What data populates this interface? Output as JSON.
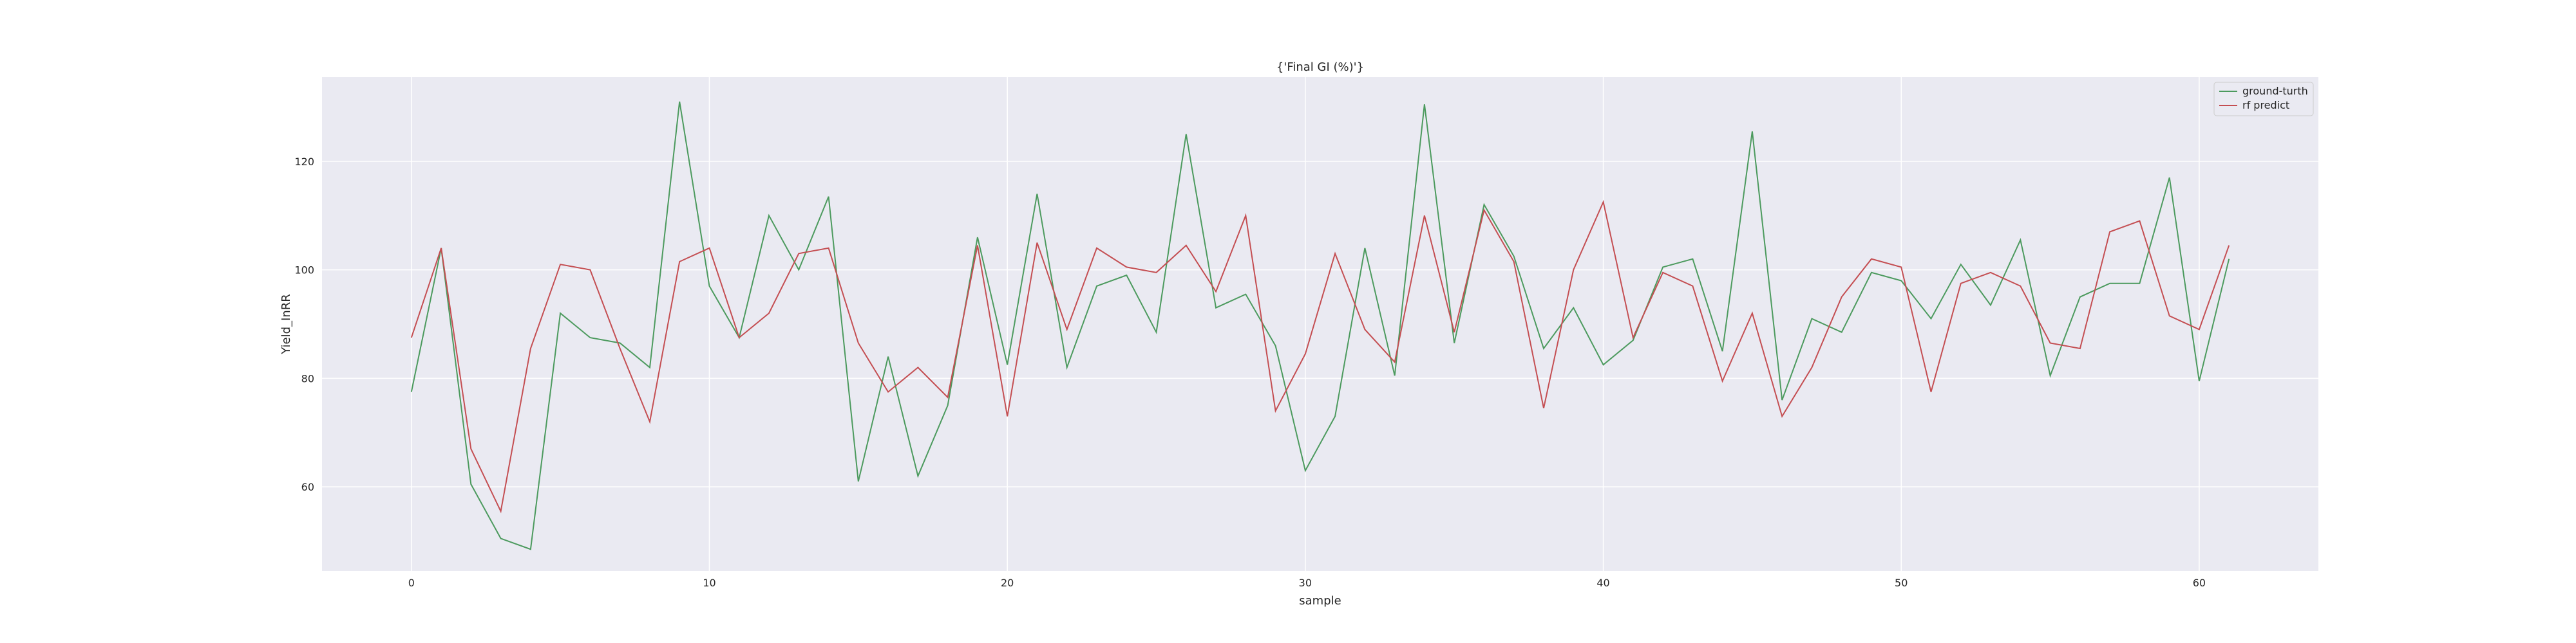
{
  "chart_data": {
    "type": "line",
    "title": "{'Final GI (%)'}",
    "xlabel": "sample",
    "ylabel": "Yield_InRR",
    "xlim": [
      -3,
      64
    ],
    "ylim": [
      44.5,
      135.5
    ],
    "x_ticks": [
      0,
      10,
      20,
      30,
      40,
      50,
      60
    ],
    "y_ticks": [
      60,
      80,
      100,
      120
    ],
    "grid": true,
    "legend_position": "top-right",
    "background": "#eaeaf2",
    "x": [
      0,
      1,
      2,
      3,
      4,
      5,
      6,
      7,
      8,
      9,
      10,
      11,
      12,
      13,
      14,
      15,
      16,
      17,
      18,
      19,
      20,
      21,
      22,
      23,
      24,
      25,
      26,
      27,
      28,
      29,
      30,
      31,
      32,
      33,
      34,
      35,
      36,
      37,
      38,
      39,
      40,
      41,
      42,
      43,
      44,
      45,
      46,
      47,
      48,
      49,
      50,
      51,
      52,
      53,
      54,
      55,
      56,
      57,
      58,
      59,
      60,
      61
    ],
    "series": [
      {
        "name": "ground-turth",
        "color": "#4c9a5e",
        "values": [
          77.5,
          104,
          60.5,
          50.5,
          48.5,
          92,
          87.5,
          86.5,
          82,
          131,
          97,
          87.5,
          110,
          100,
          113.5,
          61,
          84,
          62,
          75,
          106,
          82.5,
          114,
          82,
          97,
          99,
          88.5,
          125,
          93,
          95.5,
          86,
          63,
          73,
          104,
          80.5,
          130.5,
          86.5,
          112,
          102.5,
          85.5,
          93,
          82.5,
          87,
          100.5,
          102,
          85,
          125.5,
          76,
          91,
          88.5,
          99.5,
          98,
          91,
          101,
          93.5,
          105.5,
          80.5,
          95,
          97.5,
          97.5,
          117,
          79.5,
          102
        ]
      },
      {
        "name": "rf predict",
        "color": "#c44e52",
        "values": [
          87.5,
          104,
          67,
          55.5,
          85.5,
          101,
          100,
          85.5,
          72,
          101.5,
          104,
          87.5,
          92,
          103,
          104,
          86.5,
          77.5,
          82,
          76.5,
          104.5,
          73,
          105,
          89,
          104,
          100.5,
          99.5,
          104.5,
          96,
          110,
          74,
          84.5,
          103,
          89,
          83,
          110,
          88.5,
          111,
          101.5,
          74.5,
          100,
          112.5,
          87.5,
          99.5,
          97,
          79.5,
          92,
          73,
          82,
          95,
          102,
          100.5,
          77.5,
          97.5,
          99.5,
          97,
          86.5,
          85.5,
          107,
          109,
          91.5,
          89,
          104.5
        ]
      }
    ]
  }
}
